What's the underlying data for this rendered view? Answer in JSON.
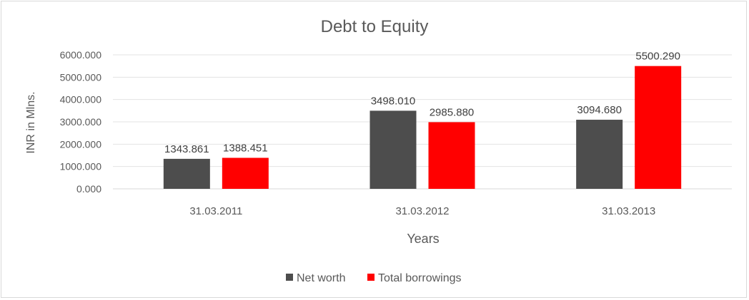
{
  "chart_data": {
    "type": "bar",
    "title": "Debt to Equity",
    "xlabel": "Years",
    "ylabel": "INR in Mlns.",
    "categories": [
      "31.03.2011",
      "31.03.2012",
      "31.03.2013"
    ],
    "yticks": [
      "0.000",
      "1000.000",
      "2000.000",
      "3000.000",
      "4000.000",
      "5000.000",
      "6000.000"
    ],
    "ylim": [
      0,
      6000
    ],
    "grid": true,
    "legend_position": "bottom",
    "series": [
      {
        "name": "Net worth",
        "values": [
          1343.861,
          3498.01,
          3094.68
        ],
        "labels": [
          "1343.861",
          "3498.010",
          "3094.680"
        ],
        "color": "#4d4d4d"
      },
      {
        "name": "Total borrowings",
        "values": [
          1388.451,
          2985.88,
          5500.29
        ],
        "labels": [
          "1388.451",
          "2985.880",
          "5500.290"
        ],
        "color": "#ff0000"
      }
    ]
  }
}
